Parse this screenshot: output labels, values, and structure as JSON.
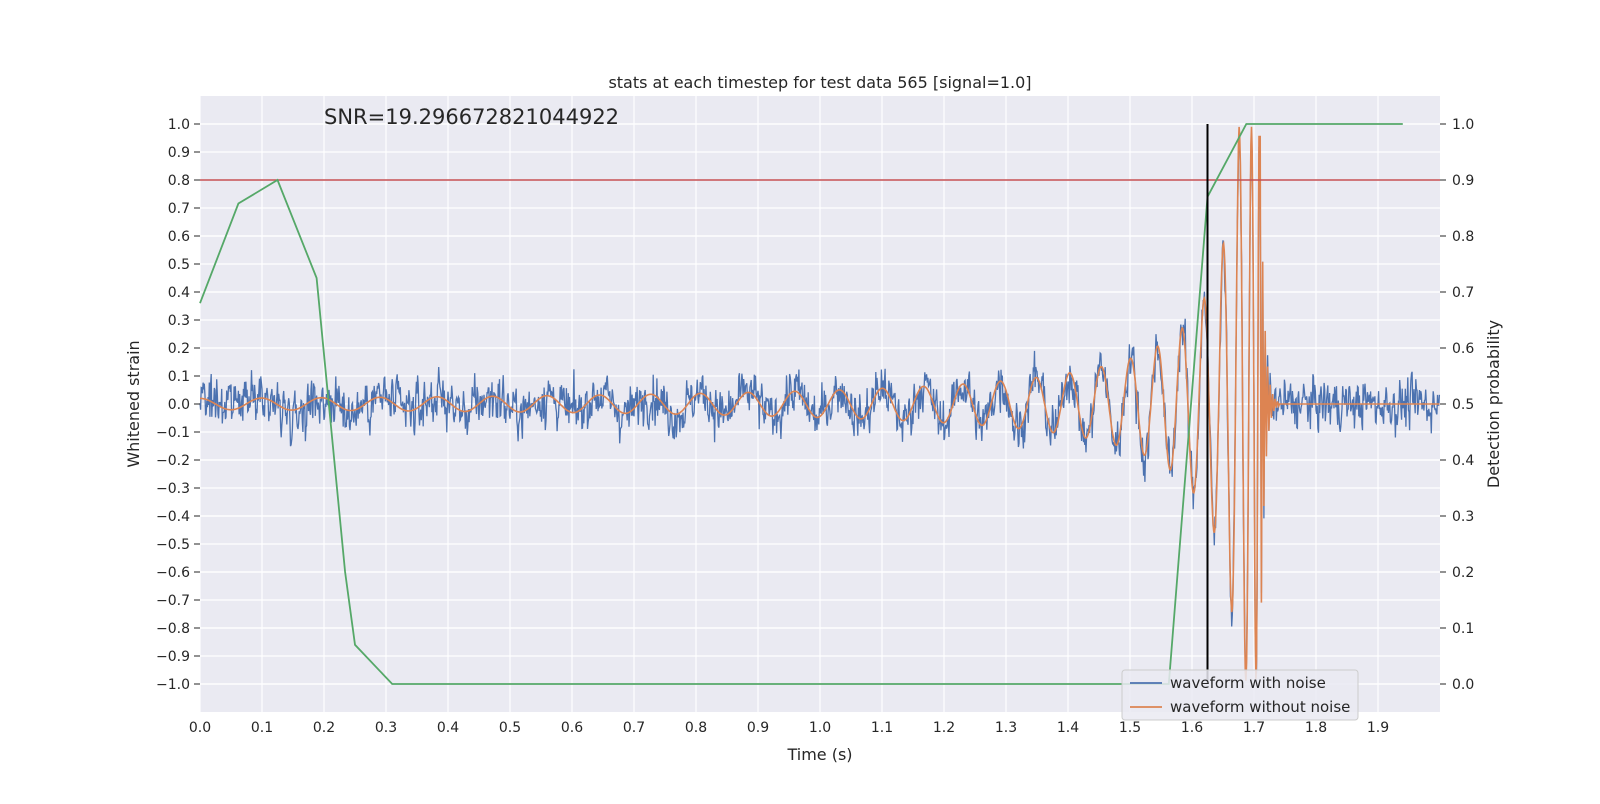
{
  "chart_data": {
    "type": "line",
    "title": "stats at each timestep for test data 565 [signal=1.0]",
    "xlabel": "Time (s)",
    "ylabel": "Whitened strain",
    "y2label": "Detection probability",
    "xlim": [
      0.0,
      2.0
    ],
    "ylim": [
      -1.1,
      1.1
    ],
    "y2lim": [
      -0.05,
      1.05
    ],
    "x_ticks": [
      "0.0",
      "0.1",
      "0.2",
      "0.3",
      "0.4",
      "0.5",
      "0.6",
      "0.7",
      "0.8",
      "0.9",
      "1.0",
      "1.1",
      "1.2",
      "1.3",
      "1.4",
      "1.5",
      "1.6",
      "1.7",
      "1.8",
      "1.9"
    ],
    "y_ticks": [
      "1.0",
      "0.9",
      "0.8",
      "0.7",
      "0.6",
      "0.5",
      "0.4",
      "0.3",
      "0.2",
      "0.1",
      "0.0",
      "−0.1",
      "−0.2",
      "−0.3",
      "−0.4",
      "−0.5",
      "−0.6",
      "−0.7",
      "−0.8",
      "−0.9",
      "−1.0"
    ],
    "y2_ticks": [
      "1.0",
      "0.9",
      "0.8",
      "0.7",
      "0.6",
      "0.5",
      "0.4",
      "0.3",
      "0.2",
      "0.1",
      "0.0"
    ],
    "grid": true,
    "annotation": "SNR=19.296672821044922",
    "legend_position": "lower right",
    "series": [
      {
        "name": "waveform with noise",
        "axis": "left",
        "color": "#4c72b0",
        "description_values": "dense noise, mostly within ±0.5, peaks near ±0.9",
        "sample_rate": 2048,
        "amplitude_range": [
          -0.96,
          0.92
        ]
      },
      {
        "name": "waveform without noise",
        "axis": "left",
        "color": "#dd8452",
        "chirp": {
          "start_amplitude": 0.02,
          "start_frequency": 10,
          "merger_time": 1.71,
          "peak_amplitude": 0.99,
          "ringdown_end": 1.74
        }
      },
      {
        "axis": "right",
        "color": "#55a868",
        "x": [
          0.0,
          0.062,
          0.125,
          0.188,
          0.234,
          0.25,
          0.31,
          0.563,
          1.5625,
          1.625,
          1.6875,
          1.75,
          1.94
        ],
        "values": [
          0.68,
          0.858,
          0.9,
          0.725,
          0.2,
          0.07,
          0.0,
          0.0,
          0.0,
          0.87,
          1.0,
          1.0,
          1.0
        ]
      }
    ],
    "threshold_line": {
      "axis": "right",
      "value": 0.9,
      "color": "#c44e52"
    },
    "vertical_line": {
      "x": 1.625,
      "color": "#000000",
      "y2_range": [
        0.0,
        1.0
      ]
    }
  }
}
